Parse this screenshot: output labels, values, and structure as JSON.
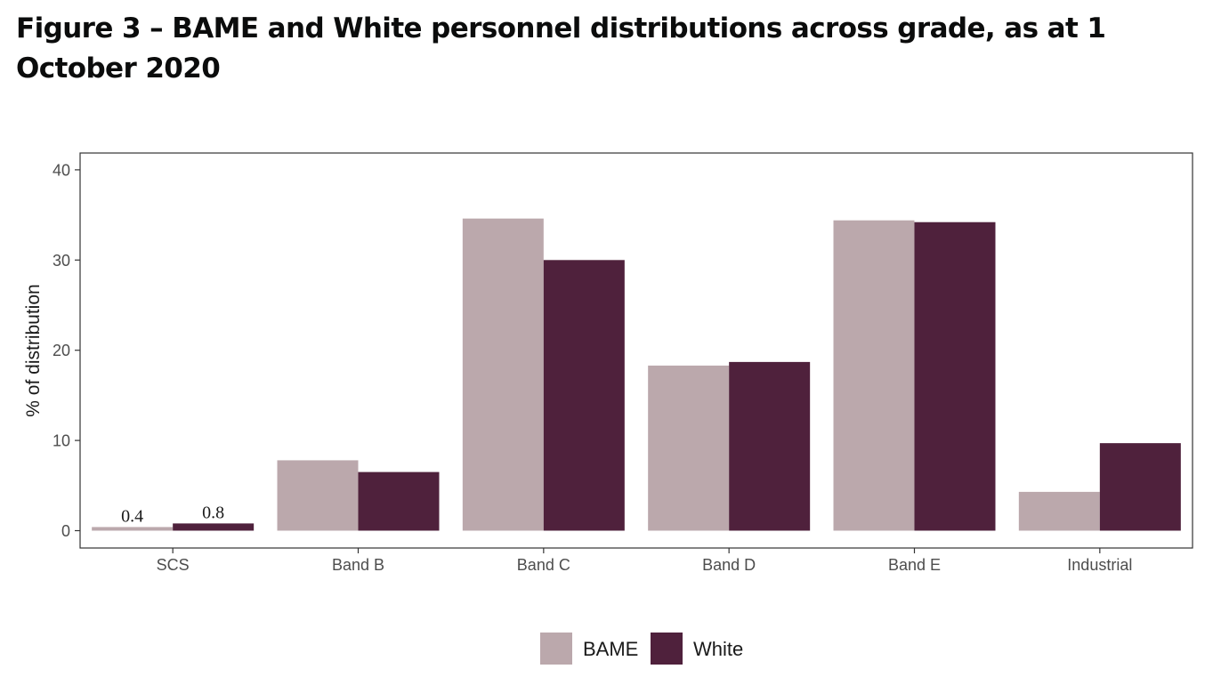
{
  "chart_data": {
    "type": "bar",
    "title": "Figure 3 – BAME and White personnel distributions across grade, as at 1 October 2020",
    "xlabel": "",
    "ylabel": "% of distribution",
    "ylim": [
      0,
      41
    ],
    "yticks": [
      0,
      10,
      20,
      30,
      40
    ],
    "grid": false,
    "legend_position": "bottom",
    "categories": [
      "SCS",
      "Band B",
      "Band C",
      "Band D",
      "Band E",
      "Industrial"
    ],
    "series": [
      {
        "name": "BAME",
        "color": "#bba8ac",
        "values": [
          0.4,
          7.8,
          34.6,
          18.3,
          34.4,
          4.3
        ]
      },
      {
        "name": "White",
        "color": "#4f213c",
        "values": [
          0.8,
          6.5,
          30.0,
          18.7,
          34.2,
          9.7
        ]
      }
    ],
    "data_labels": [
      {
        "category": "SCS",
        "series": "BAME",
        "text": "0.4"
      },
      {
        "category": "SCS",
        "series": "White",
        "text": "0.8"
      }
    ]
  }
}
